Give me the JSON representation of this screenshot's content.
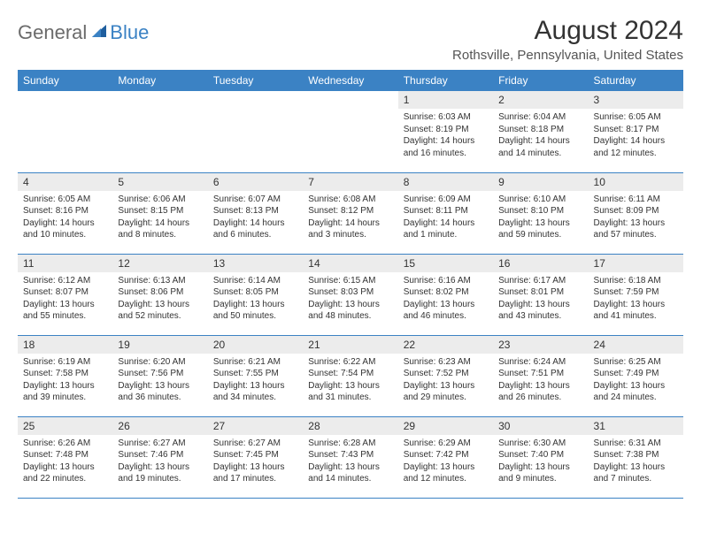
{
  "brand": {
    "part1": "General",
    "part2": "Blue"
  },
  "title": "August 2024",
  "location": "Rothsville, Pennsylvania, United States",
  "colors": {
    "header_bg": "#3b82c4",
    "header_text": "#ffffff",
    "daynum_bg": "#ececec",
    "text": "#333333",
    "row_divider": "#3b82c4"
  },
  "dayHeaders": [
    "Sunday",
    "Monday",
    "Tuesday",
    "Wednesday",
    "Thursday",
    "Friday",
    "Saturday"
  ],
  "weeks": [
    [
      null,
      null,
      null,
      null,
      {
        "n": "1",
        "sr": "6:03 AM",
        "ss": "8:19 PM",
        "dl": "14 hours and 16 minutes."
      },
      {
        "n": "2",
        "sr": "6:04 AM",
        "ss": "8:18 PM",
        "dl": "14 hours and 14 minutes."
      },
      {
        "n": "3",
        "sr": "6:05 AM",
        "ss": "8:17 PM",
        "dl": "14 hours and 12 minutes."
      }
    ],
    [
      {
        "n": "4",
        "sr": "6:05 AM",
        "ss": "8:16 PM",
        "dl": "14 hours and 10 minutes."
      },
      {
        "n": "5",
        "sr": "6:06 AM",
        "ss": "8:15 PM",
        "dl": "14 hours and 8 minutes."
      },
      {
        "n": "6",
        "sr": "6:07 AM",
        "ss": "8:13 PM",
        "dl": "14 hours and 6 minutes."
      },
      {
        "n": "7",
        "sr": "6:08 AM",
        "ss": "8:12 PM",
        "dl": "14 hours and 3 minutes."
      },
      {
        "n": "8",
        "sr": "6:09 AM",
        "ss": "8:11 PM",
        "dl": "14 hours and 1 minute."
      },
      {
        "n": "9",
        "sr": "6:10 AM",
        "ss": "8:10 PM",
        "dl": "13 hours and 59 minutes."
      },
      {
        "n": "10",
        "sr": "6:11 AM",
        "ss": "8:09 PM",
        "dl": "13 hours and 57 minutes."
      }
    ],
    [
      {
        "n": "11",
        "sr": "6:12 AM",
        "ss": "8:07 PM",
        "dl": "13 hours and 55 minutes."
      },
      {
        "n": "12",
        "sr": "6:13 AM",
        "ss": "8:06 PM",
        "dl": "13 hours and 52 minutes."
      },
      {
        "n": "13",
        "sr": "6:14 AM",
        "ss": "8:05 PM",
        "dl": "13 hours and 50 minutes."
      },
      {
        "n": "14",
        "sr": "6:15 AM",
        "ss": "8:03 PM",
        "dl": "13 hours and 48 minutes."
      },
      {
        "n": "15",
        "sr": "6:16 AM",
        "ss": "8:02 PM",
        "dl": "13 hours and 46 minutes."
      },
      {
        "n": "16",
        "sr": "6:17 AM",
        "ss": "8:01 PM",
        "dl": "13 hours and 43 minutes."
      },
      {
        "n": "17",
        "sr": "6:18 AM",
        "ss": "7:59 PM",
        "dl": "13 hours and 41 minutes."
      }
    ],
    [
      {
        "n": "18",
        "sr": "6:19 AM",
        "ss": "7:58 PM",
        "dl": "13 hours and 39 minutes."
      },
      {
        "n": "19",
        "sr": "6:20 AM",
        "ss": "7:56 PM",
        "dl": "13 hours and 36 minutes."
      },
      {
        "n": "20",
        "sr": "6:21 AM",
        "ss": "7:55 PM",
        "dl": "13 hours and 34 minutes."
      },
      {
        "n": "21",
        "sr": "6:22 AM",
        "ss": "7:54 PM",
        "dl": "13 hours and 31 minutes."
      },
      {
        "n": "22",
        "sr": "6:23 AM",
        "ss": "7:52 PM",
        "dl": "13 hours and 29 minutes."
      },
      {
        "n": "23",
        "sr": "6:24 AM",
        "ss": "7:51 PM",
        "dl": "13 hours and 26 minutes."
      },
      {
        "n": "24",
        "sr": "6:25 AM",
        "ss": "7:49 PM",
        "dl": "13 hours and 24 minutes."
      }
    ],
    [
      {
        "n": "25",
        "sr": "6:26 AM",
        "ss": "7:48 PM",
        "dl": "13 hours and 22 minutes."
      },
      {
        "n": "26",
        "sr": "6:27 AM",
        "ss": "7:46 PM",
        "dl": "13 hours and 19 minutes."
      },
      {
        "n": "27",
        "sr": "6:27 AM",
        "ss": "7:45 PM",
        "dl": "13 hours and 17 minutes."
      },
      {
        "n": "28",
        "sr": "6:28 AM",
        "ss": "7:43 PM",
        "dl": "13 hours and 14 minutes."
      },
      {
        "n": "29",
        "sr": "6:29 AM",
        "ss": "7:42 PM",
        "dl": "13 hours and 12 minutes."
      },
      {
        "n": "30",
        "sr": "6:30 AM",
        "ss": "7:40 PM",
        "dl": "13 hours and 9 minutes."
      },
      {
        "n": "31",
        "sr": "6:31 AM",
        "ss": "7:38 PM",
        "dl": "13 hours and 7 minutes."
      }
    ]
  ],
  "labels": {
    "sunrise": "Sunrise: ",
    "sunset": "Sunset: ",
    "daylight": "Daylight: "
  }
}
